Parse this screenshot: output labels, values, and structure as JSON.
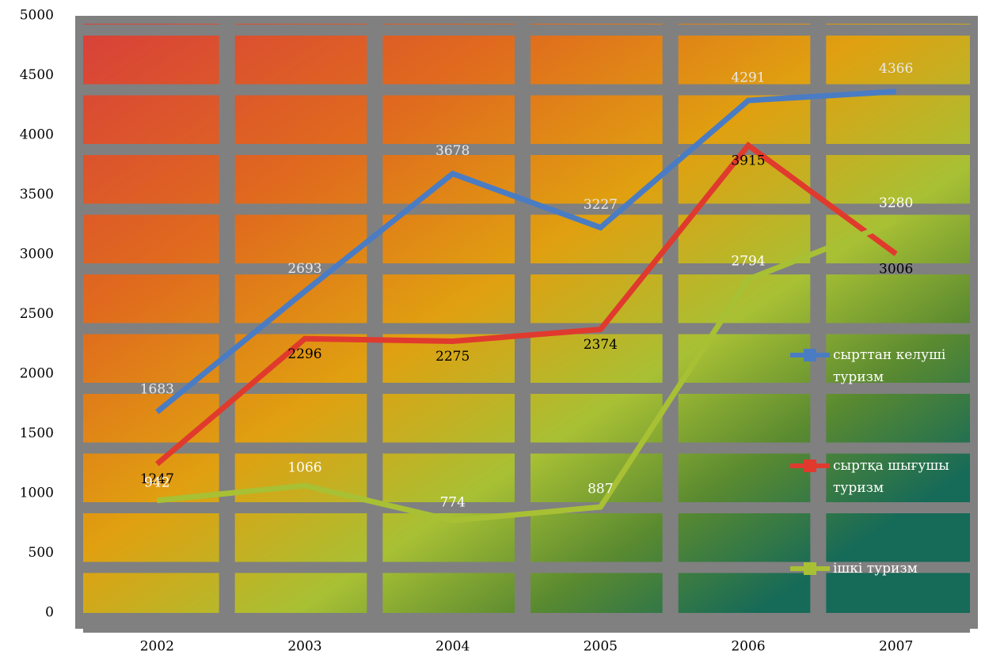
{
  "chart_data": {
    "type": "line",
    "categories": [
      "2002",
      "2003",
      "2004",
      "2005",
      "2006",
      "2007"
    ],
    "series": [
      {
        "name": "сырттан келуші туризм",
        "color": "#4a7cc4",
        "label_color": "#e8e8e8",
        "values": [
          1683,
          2693,
          3678,
          3227,
          4291,
          4366
        ]
      },
      {
        "name": "сыртқа шығушы туризм",
        "color": "#e03a2e",
        "label_color": "#000000",
        "values": [
          1247,
          2296,
          2275,
          2374,
          3915,
          3006
        ]
      },
      {
        "name": "ішкі туризм",
        "color": "#a8c034",
        "label_color": "#ffffff",
        "values": [
          942,
          1066,
          774,
          887,
          2794,
          3280
        ]
      }
    ],
    "ylim": [
      0,
      5000
    ],
    "yticks": [
      0,
      500,
      1000,
      1500,
      2000,
      2500,
      3000,
      3500,
      4000,
      4500,
      5000
    ],
    "grid": true
  }
}
